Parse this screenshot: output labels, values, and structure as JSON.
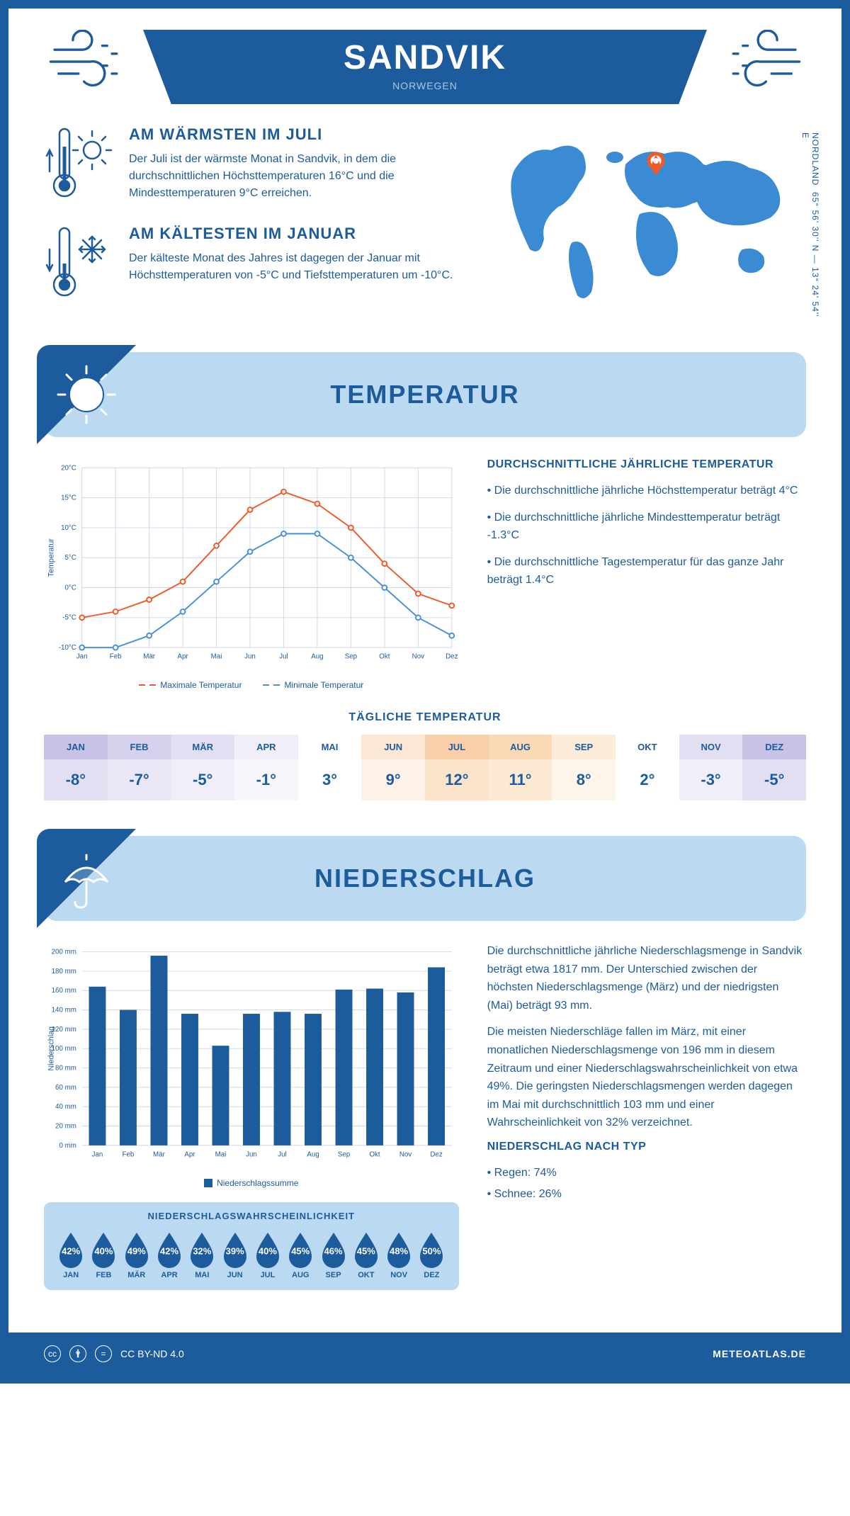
{
  "header": {
    "city": "SANDVIK",
    "country": "NORWEGEN",
    "coords_line1": "65° 56' 30'' N — 13° 24' 54'' E",
    "coords_line2": "NORDLAND"
  },
  "warmest": {
    "title": "AM WÄRMSTEN IM JULI",
    "text": "Der Juli ist der wärmste Monat in Sandvik, in dem die durchschnittlichen Höchsttemperaturen 16°C und die Mindesttemperaturen 9°C erreichen."
  },
  "coldest": {
    "title": "AM KÄLTESTEN IM JANUAR",
    "text": "Der kälteste Monat des Jahres ist dagegen der Januar mit Höchsttemperaturen von -5°C und Tiefsttemperaturen um -10°C."
  },
  "temp_section": {
    "title": "TEMPERATUR",
    "info_title": "DURCHSCHNITTLICHE JÄHRLICHE TEMPERATUR",
    "bullet1": "• Die durchschnittliche jährliche Höchsttemperatur beträgt 4°C",
    "bullet2": "• Die durchschnittliche jährliche Mindesttemperatur beträgt -1.3°C",
    "bullet3": "• Die durchschnittliche Tagestemperatur für das ganze Jahr beträgt 1.4°C",
    "legend_max": "Maximale Temperatur",
    "legend_min": "Minimale Temperatur",
    "daily_title": "TÄGLICHE TEMPERATUR"
  },
  "temp_chart": {
    "type": "line",
    "months": [
      "Jan",
      "Feb",
      "Mär",
      "Apr",
      "Mai",
      "Jun",
      "Jul",
      "Aug",
      "Sep",
      "Okt",
      "Nov",
      "Dez"
    ],
    "max_values": [
      -5,
      -4,
      -2,
      1,
      7,
      13,
      16,
      14,
      10,
      4,
      -1,
      -3
    ],
    "min_values": [
      -10,
      -10,
      -8,
      -4,
      1,
      6,
      9,
      9,
      5,
      0,
      -5,
      -8
    ],
    "max_color": "#f05a28",
    "min_color": "#4a90d9",
    "ylim": [
      -10,
      20
    ],
    "ytick_step": 5,
    "ylabel": "Temperatur",
    "grid_color": "#d0d8e8",
    "background": "#ffffff",
    "marker": "circle",
    "line_width": 2
  },
  "daily_temp": {
    "months": [
      "JAN",
      "FEB",
      "MÄR",
      "APR",
      "MAI",
      "JUN",
      "JUL",
      "AUG",
      "SEP",
      "OKT",
      "NOV",
      "DEZ"
    ],
    "values": [
      "-8°",
      "-7°",
      "-5°",
      "-1°",
      "3°",
      "9°",
      "12°",
      "11°",
      "8°",
      "2°",
      "-3°",
      "-5°"
    ],
    "head_colors": [
      "#c7c2e6",
      "#d5d1ec",
      "#e2dff2",
      "#f0eef8",
      "#ffffff",
      "#fbe8d4",
      "#f8cfa8",
      "#fad9b7",
      "#fdecda",
      "#ffffff",
      "#e2dff2",
      "#c7c2e6"
    ],
    "val_colors": [
      "#e2dff2",
      "#e9e7f5",
      "#f0eef8",
      "#f7f6fb",
      "#ffffff",
      "#fdf3e8",
      "#fbe4cb",
      "#fce9d4",
      "#fef5ea",
      "#ffffff",
      "#f0eef8",
      "#e2dff2"
    ],
    "text_color": "#1c5b9c"
  },
  "precip_section": {
    "title": "NIEDERSCHLAG",
    "text1": "Die durchschnittliche jährliche Niederschlagsmenge in Sandvik beträgt etwa 1817 mm. Der Unterschied zwischen der höchsten Niederschlagsmenge (März) und der niedrigsten (Mai) beträgt 93 mm.",
    "text2": "Die meisten Niederschläge fallen im März, mit einer monatlichen Niederschlagsmenge von 196 mm in diesem Zeitraum und einer Niederschlagswahrscheinlichkeit von etwa 49%. Die geringsten Niederschlagsmengen werden dagegen im Mai mit durchschnittlich 103 mm und einer Wahrscheinlichkeit von 32% verzeichnet.",
    "type_title": "NIEDERSCHLAG NACH TYP",
    "type_rain": "• Regen: 74%",
    "type_snow": "• Schnee: 26%",
    "legend": "Niederschlagssumme",
    "prob_title": "NIEDERSCHLAGSWAHRSCHEINLICHKEIT"
  },
  "precip_chart": {
    "type": "bar",
    "months": [
      "Jan",
      "Feb",
      "Mär",
      "Apr",
      "Mai",
      "Jun",
      "Jul",
      "Aug",
      "Sep",
      "Okt",
      "Nov",
      "Dez"
    ],
    "values": [
      164,
      140,
      196,
      136,
      103,
      136,
      138,
      136,
      161,
      162,
      158,
      184
    ],
    "bar_color": "#1c5b9c",
    "ylim": [
      0,
      200
    ],
    "ytick_step": 20,
    "ylabel": "Niederschlag",
    "grid_color": "#d0d8e8",
    "bar_width": 0.55
  },
  "precip_prob": {
    "months": [
      "JAN",
      "FEB",
      "MÄR",
      "APR",
      "MAI",
      "JUN",
      "JUL",
      "AUG",
      "SEP",
      "OKT",
      "NOV",
      "DEZ"
    ],
    "values": [
      "42%",
      "40%",
      "49%",
      "42%",
      "32%",
      "39%",
      "40%",
      "45%",
      "46%",
      "45%",
      "48%",
      "50%"
    ],
    "drop_color": "#1c5b9c"
  },
  "footer": {
    "license": "CC BY-ND 4.0",
    "site": "METEOATLAS.DE"
  }
}
